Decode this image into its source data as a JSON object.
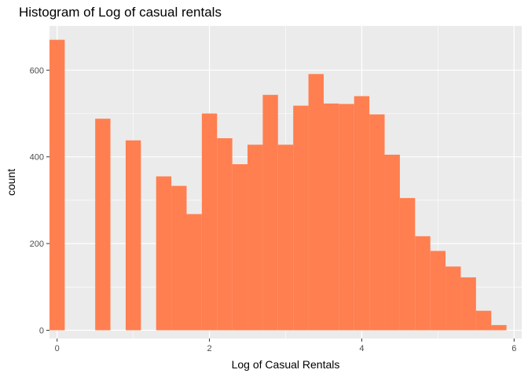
{
  "chart_data": {
    "type": "bar",
    "title": "Histogram of Log of casual rentals",
    "xlabel": "Log of Casual Rentals",
    "ylabel": "count",
    "xlim": [
      -0.1,
      6.1
    ],
    "ylim": [
      0,
      700
    ],
    "x_ticks": [
      0,
      2,
      4,
      6
    ],
    "y_ticks": [
      0,
      200,
      400,
      600
    ],
    "grid": true,
    "bin_width": 0.2,
    "bin_centers": [
      0.0,
      0.2,
      0.4,
      0.6,
      0.8,
      1.0,
      1.2,
      1.4,
      1.6,
      1.8,
      2.0,
      2.2,
      2.4,
      2.6,
      2.8,
      3.0,
      3.2,
      3.4,
      3.6,
      3.8,
      4.0,
      4.2,
      4.4,
      4.6,
      4.8,
      5.0,
      5.2,
      5.4,
      5.6,
      5.8,
      6.0
    ],
    "values": [
      670,
      0,
      0,
      488,
      0,
      438,
      0,
      355,
      333,
      268,
      500,
      443,
      383,
      428,
      543,
      428,
      518,
      591,
      523,
      522,
      540,
      498,
      405,
      305,
      217,
      183,
      147,
      122,
      45,
      12,
      0
    ],
    "fill_color": "#FF7F50",
    "panel_color": "#EBEBEB",
    "grid_color": "#FFFFFF"
  }
}
